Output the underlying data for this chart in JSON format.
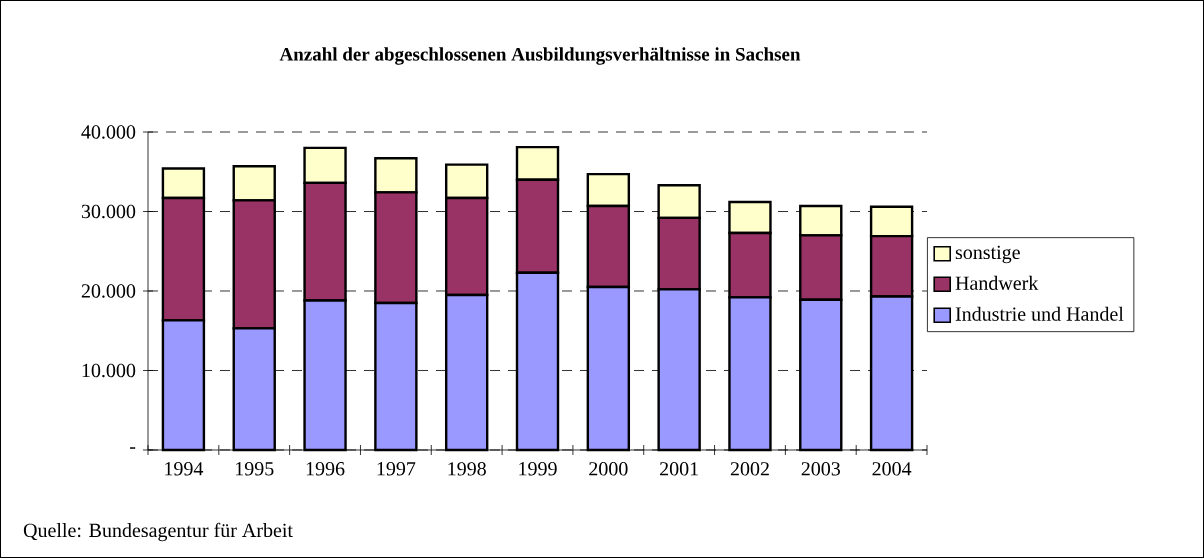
{
  "chart_data": {
    "type": "bar",
    "stacked": true,
    "title": "Anzahl der abgeschlossenen Ausbildungsverhältnisse in Sachsen",
    "categories": [
      "1994",
      "1995",
      "1996",
      "1997",
      "1998",
      "1999",
      "2000",
      "2001",
      "2002",
      "2003",
      "2004"
    ],
    "series": [
      {
        "name": "Industrie und Handel",
        "color": "#9999ff",
        "values": [
          16300,
          15300,
          18800,
          18500,
          19500,
          22300,
          20500,
          20200,
          19200,
          18900,
          19300
        ]
      },
      {
        "name": "Handwerk",
        "color": "#993366",
        "values": [
          15400,
          16100,
          14800,
          13900,
          12200,
          11700,
          10200,
          9000,
          8100,
          8100,
          7600
        ]
      },
      {
        "name": "sonstige",
        "color": "#ffffcc",
        "values": [
          3700,
          4300,
          4400,
          4300,
          4200,
          4100,
          4000,
          4100,
          3900,
          3700,
          3700
        ]
      }
    ],
    "ylim": [
      0,
      40000
    ],
    "yticks": [
      {
        "value": 0,
        "label": "-"
      },
      {
        "value": 10000,
        "label": "10.000"
      },
      {
        "value": 20000,
        "label": "20.000"
      },
      {
        "value": 30000,
        "label": "30.000"
      },
      {
        "value": 40000,
        "label": "40.000"
      }
    ],
    "grid": "y",
    "legend": "right",
    "annotations": [
      "Quelle: Bundesagentur für Arbeit"
    ]
  }
}
